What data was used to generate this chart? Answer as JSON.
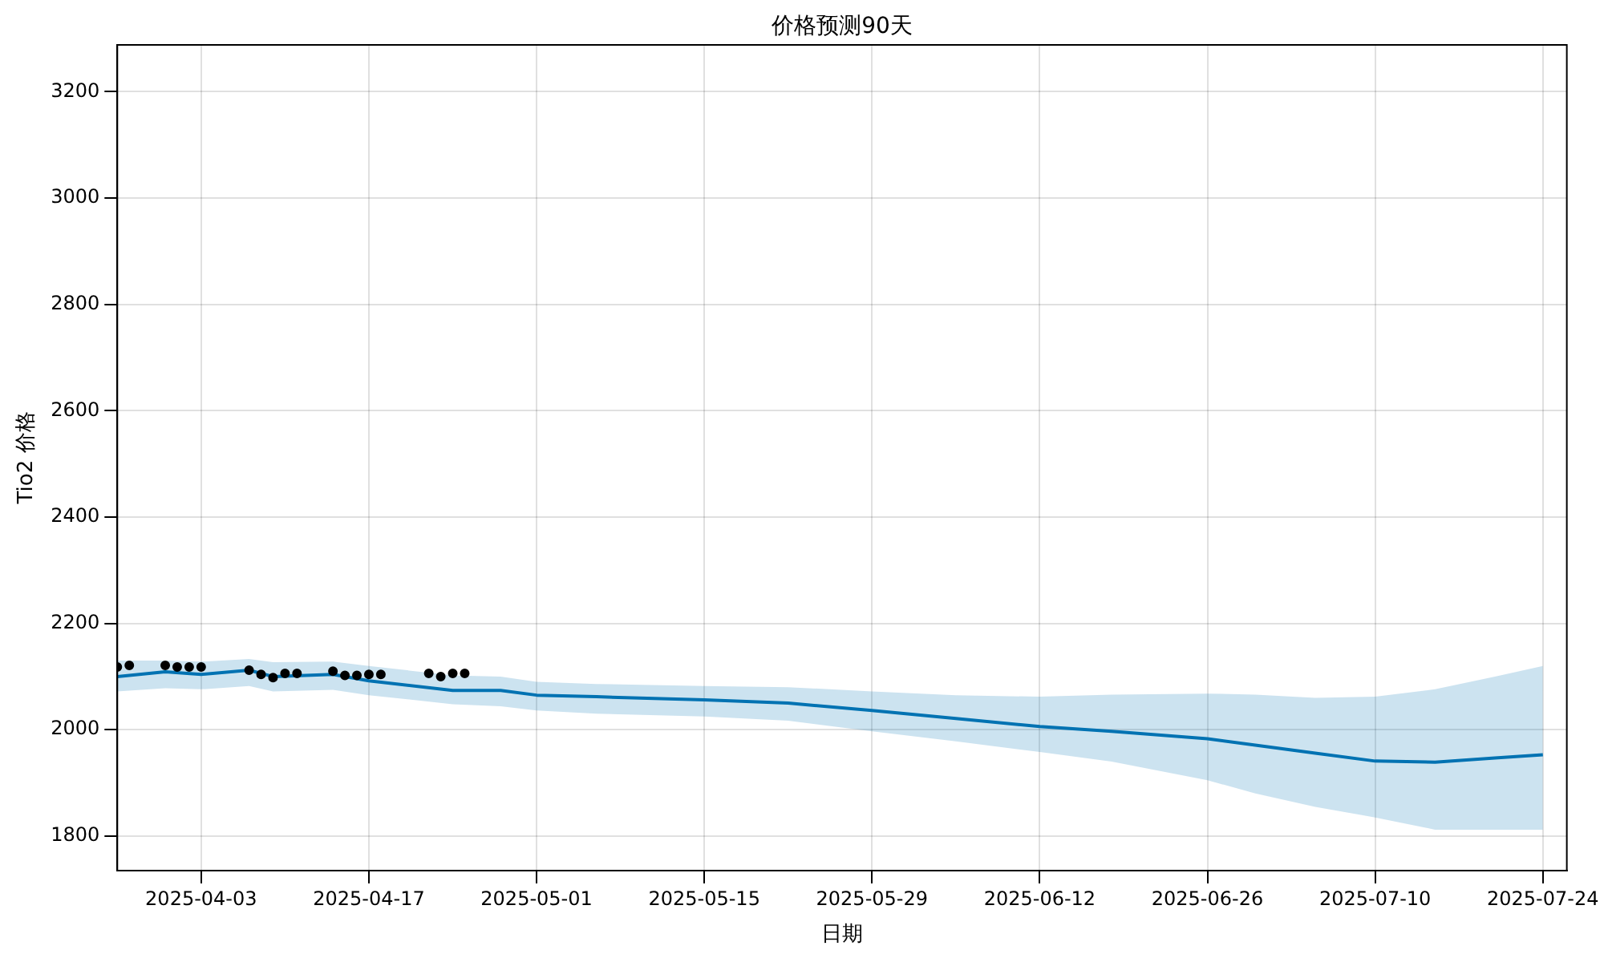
{
  "chart_data": {
    "type": "line",
    "title": "价格预测90天",
    "xlabel": "日期",
    "ylabel": "Tio2 价格",
    "xlim": [
      "2025-03-27",
      "2025-07-26"
    ],
    "xticks": [
      "2025-04-03",
      "2025-04-17",
      "2025-05-01",
      "2025-05-15",
      "2025-05-29",
      "2025-06-12",
      "2025-06-26",
      "2025-07-10",
      "2025-07-24"
    ],
    "ylim": [
      1735,
      3288
    ],
    "yticks": [
      1800,
      2000,
      2200,
      2400,
      2600,
      2800,
      3000,
      3200
    ],
    "grid": true,
    "legend": false,
    "series": [
      {
        "type": "line",
        "color": "#0072b2",
        "marker": "none",
        "x": [
          "2025-03-27",
          "2025-03-31",
          "2025-04-03",
          "2025-04-07",
          "2025-04-09",
          "2025-04-14",
          "2025-04-17",
          "2025-04-24",
          "2025-04-28",
          "2025-05-01",
          "2025-05-06",
          "2025-05-15",
          "2025-05-22",
          "2025-05-29",
          "2025-06-05",
          "2025-06-12",
          "2025-06-18",
          "2025-06-26",
          "2025-06-30",
          "2025-07-05",
          "2025-07-10",
          "2025-07-15",
          "2025-07-20",
          "2025-07-24"
        ],
        "values": [
          2100,
          2109,
          2104,
          2112,
          2100,
          2104,
          2092,
          2074,
          2074,
          2065,
          2062,
          2056,
          2050,
          2036,
          2021,
          2006,
          1997,
          1983,
          1971,
          1956,
          1941,
          1939,
          1947,
          1953
        ],
        "upper": [
          2130,
          2130,
          2128,
          2133,
          2127,
          2128,
          2120,
          2102,
          2100,
          2090,
          2086,
          2082,
          2080,
          2072,
          2065,
          2062,
          2066,
          2068,
          2066,
          2060,
          2062,
          2076,
          2100,
          2120
        ],
        "lower": [
          2072,
          2078,
          2076,
          2082,
          2072,
          2075,
          2065,
          2048,
          2044,
          2036,
          2030,
          2025,
          2017,
          1997,
          1978,
          1958,
          1940,
          1905,
          1880,
          1855,
          1835,
          1812,
          1812,
          1812
        ]
      },
      {
        "type": "scatter",
        "color": "#000000",
        "marker": "circle",
        "x": [
          "2025-03-27",
          "2025-03-28",
          "2025-03-31",
          "2025-04-01",
          "2025-04-02",
          "2025-04-03",
          "2025-04-07",
          "2025-04-08",
          "2025-04-09",
          "2025-04-10",
          "2025-04-11",
          "2025-04-14",
          "2025-04-15",
          "2025-04-16",
          "2025-04-17",
          "2025-04-18",
          "2025-04-22",
          "2025-04-23",
          "2025-04-24",
          "2025-04-25"
        ],
        "values": [
          2118,
          2121,
          2121,
          2118,
          2118,
          2118,
          2112,
          2104,
          2098,
          2106,
          2106,
          2110,
          2102,
          2102,
          2104,
          2104,
          2106,
          2100,
          2106,
          2106
        ]
      }
    ]
  }
}
